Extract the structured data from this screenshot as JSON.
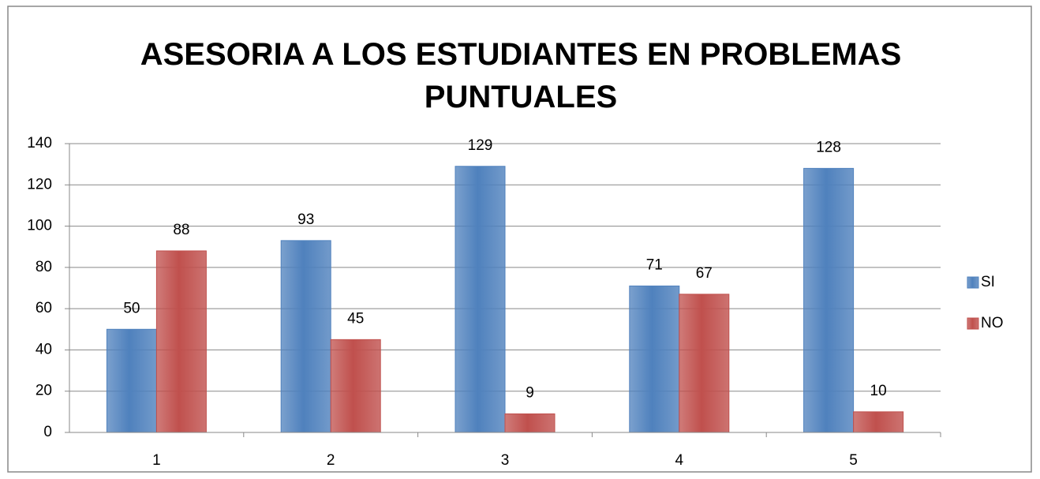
{
  "chart_data": {
    "type": "bar",
    "title": "ASESORIA A LOS ESTUDIANTES EN PROBLEMAS PUNTUALES",
    "categories": [
      "1",
      "2",
      "3",
      "4",
      "5"
    ],
    "series": [
      {
        "name": "SI",
        "color": "#4f81bd",
        "values": [
          50,
          93,
          129,
          71,
          128
        ]
      },
      {
        "name": "NO",
        "color": "#c0504d",
        "values": [
          88,
          45,
          9,
          67,
          10
        ]
      }
    ],
    "ylim": [
      0,
      140
    ],
    "yticks": [
      0,
      20,
      40,
      60,
      80,
      100,
      120,
      140
    ],
    "grid": true,
    "legend": "right"
  }
}
